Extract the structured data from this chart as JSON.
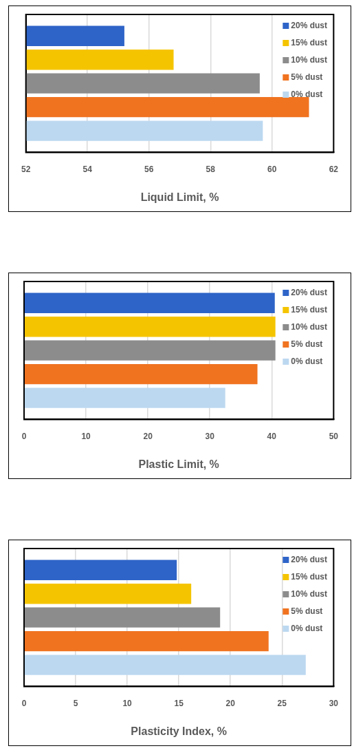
{
  "chart_data": [
    {
      "type": "bar",
      "orientation": "horizontal",
      "xlabel": "Liquid Limit, %",
      "categories": [
        null
      ],
      "xlim": [
        52,
        62
      ],
      "xticks": [
        52,
        54,
        56,
        58,
        60,
        62
      ],
      "grid": "x",
      "legend": "top right",
      "tick_labels": "x",
      "series": [
        {
          "name": "20% dust",
          "color": "#2e64c8",
          "values": [
            55.2
          ]
        },
        {
          "name": "15% dust",
          "color": "#f5c400",
          "values": [
            56.8
          ]
        },
        {
          "name": "10% dust",
          "color": "#8c8c8c",
          "values": [
            59.6
          ]
        },
        {
          "name": "5% dust",
          "color": "#f07320",
          "values": [
            61.2
          ]
        },
        {
          "name": "0% dust",
          "color": "#bcd8f0",
          "values": [
            59.7
          ]
        }
      ]
    },
    {
      "type": "bar",
      "orientation": "horizontal",
      "xlabel": "Plastic Limit, %",
      "categories": [
        null
      ],
      "xlim": [
        0,
        50
      ],
      "xticks": [
        0,
        10,
        20,
        30,
        40,
        50
      ],
      "grid": "x",
      "legend": "top right",
      "tick_labels": "x",
      "series": [
        {
          "name": "20% dust",
          "color": "#2e64c8",
          "values": [
            40.5
          ]
        },
        {
          "name": "15% dust",
          "color": "#f5c400",
          "values": [
            40.6
          ]
        },
        {
          "name": "10% dust",
          "color": "#8c8c8c",
          "values": [
            40.6
          ]
        },
        {
          "name": "5% dust",
          "color": "#f07320",
          "values": [
            37.7
          ]
        },
        {
          "name": "0% dust",
          "color": "#bcd8f0",
          "values": [
            32.5
          ]
        }
      ]
    },
    {
      "type": "bar",
      "orientation": "horizontal",
      "xlabel": "Plasticity Index, %",
      "categories": [
        null
      ],
      "xlim": [
        0,
        30
      ],
      "xticks": [
        0,
        5,
        10,
        15,
        20,
        25,
        30
      ],
      "grid": "x",
      "legend": "top right",
      "tick_labels": "x",
      "series": [
        {
          "name": "20% dust",
          "color": "#2e64c8",
          "values": [
            14.8
          ]
        },
        {
          "name": "15% dust",
          "color": "#f5c400",
          "values": [
            16.2
          ]
        },
        {
          "name": "10% dust",
          "color": "#8c8c8c",
          "values": [
            19.0
          ]
        },
        {
          "name": "5% dust",
          "color": "#f07320",
          "values": [
            23.7
          ]
        },
        {
          "name": "0% dust",
          "color": "#bcd8f0",
          "values": [
            27.3
          ]
        }
      ]
    }
  ]
}
